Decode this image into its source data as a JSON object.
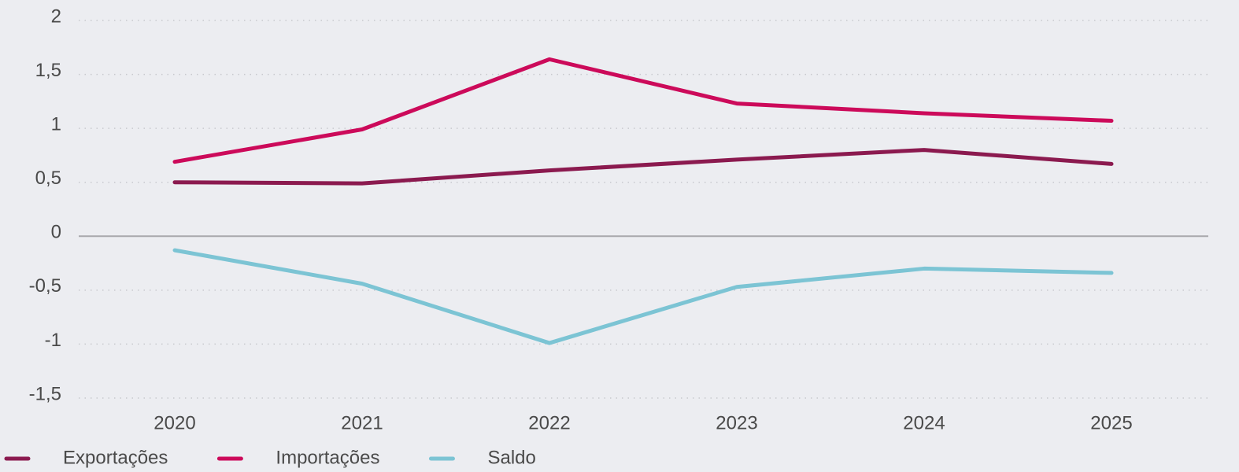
{
  "chart_data": {
    "type": "line",
    "categories": [
      "2020",
      "2021",
      "2022",
      "2023",
      "2024",
      "2025"
    ],
    "series": [
      {
        "name": "Exportações",
        "color": "#8b1a4f",
        "values": [
          0.5,
          0.49,
          0.61,
          0.71,
          0.8,
          0.67
        ]
      },
      {
        "name": "Importações",
        "color": "#cc0a5a",
        "values": [
          0.69,
          0.99,
          1.64,
          1.23,
          1.14,
          1.07
        ]
      },
      {
        "name": "Saldo",
        "color": "#7cc4d4",
        "values": [
          -0.13,
          -0.44,
          -0.99,
          -0.47,
          -0.3,
          -0.34
        ]
      }
    ],
    "ylim": [
      -1.5,
      2
    ],
    "yticks": [
      {
        "value": -1.5,
        "label": "-1,5"
      },
      -1,
      {
        "value": -0.5,
        "label": "-0,5"
      },
      0,
      {
        "value": 0.5,
        "label": "0,5"
      },
      1,
      {
        "value": 1.5,
        "label": "1,5"
      },
      2
    ],
    "grid": true,
    "legend": "bottom-left"
  }
}
